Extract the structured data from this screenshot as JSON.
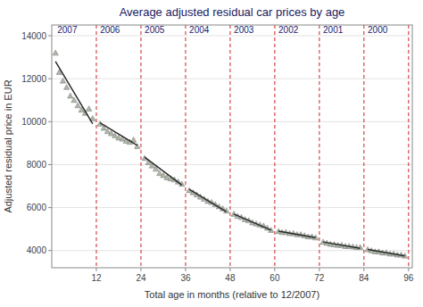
{
  "chart_data": {
    "type": "scatter",
    "title": "Average adjusted residual car prices by age",
    "x_label": "Total age in months (relative to 12/2007)",
    "y_label": "Adjusted residual price in EUR",
    "xlim": [
      0,
      97
    ],
    "ylim": [
      3200,
      14500
    ],
    "xticks": [
      12,
      24,
      36,
      48,
      60,
      72,
      84,
      96
    ],
    "yticks": [
      4000,
      6000,
      8000,
      10000,
      12000,
      14000
    ],
    "grid": true,
    "vlines": {
      "x": [
        12,
        24,
        36,
        48,
        60,
        72,
        84,
        96
      ],
      "color": "#cc2222",
      "line_style": "dashed"
    },
    "annotations": [
      {
        "text": "2007",
        "x": 1.5,
        "y": 14050
      },
      {
        "text": "2006",
        "x": 13,
        "y": 14050
      },
      {
        "text": "2005",
        "x": 25,
        "y": 14050
      },
      {
        "text": "2004",
        "x": 37,
        "y": 14050
      },
      {
        "text": "2003",
        "x": 49,
        "y": 14050
      },
      {
        "text": "2002",
        "x": 61,
        "y": 14050
      },
      {
        "text": "2001",
        "x": 73,
        "y": 14050
      },
      {
        "text": "2000",
        "x": 85,
        "y": 14050
      }
    ],
    "series": [
      {
        "type": "scatter",
        "marker": "triangle",
        "color": "#adb8a8",
        "x": [
          1,
          2,
          3,
          4,
          5,
          6,
          7,
          8,
          9,
          10,
          11
        ],
        "values": [
          13200,
          12300,
          11900,
          11600,
          11200,
          11000,
          10750,
          10550,
          10400,
          10600,
          10150
        ]
      },
      {
        "type": "line",
        "color": "#2a2a2a",
        "x": [
          1,
          11
        ],
        "values": [
          12800,
          9900
        ]
      },
      {
        "type": "scatter",
        "marker": "triangle",
        "color": "#adb8a8",
        "x": [
          13,
          14,
          15,
          16,
          17,
          18,
          19,
          20,
          21,
          22,
          23
        ],
        "values": [
          9900,
          9700,
          9550,
          9450,
          9350,
          9250,
          9200,
          9100,
          9050,
          9150,
          8850
        ]
      },
      {
        "type": "line",
        "color": "#2a2a2a",
        "x": [
          13,
          23
        ],
        "values": [
          9950,
          8900
        ]
      },
      {
        "type": "scatter",
        "marker": "triangle",
        "color": "#adb8a8",
        "x": [
          25,
          26,
          27,
          28,
          29,
          30,
          31,
          32,
          33,
          34,
          35
        ],
        "values": [
          8300,
          8100,
          7950,
          7800,
          7600,
          7500,
          7400,
          7350,
          7300,
          7200,
          7100
        ]
      },
      {
        "type": "line",
        "color": "#2a2a2a",
        "x": [
          25,
          35
        ],
        "values": [
          8350,
          7050
        ]
      },
      {
        "type": "scatter",
        "marker": "triangle",
        "color": "#adb8a8",
        "x": [
          37,
          38,
          39,
          40,
          41,
          42,
          43,
          44,
          45,
          46,
          47
        ],
        "values": [
          6800,
          6700,
          6600,
          6500,
          6400,
          6300,
          6250,
          6150,
          6050,
          5950,
          5850
        ]
      },
      {
        "type": "line",
        "color": "#2a2a2a",
        "x": [
          37,
          47
        ],
        "values": [
          6850,
          5800
        ]
      },
      {
        "type": "scatter",
        "marker": "triangle",
        "color": "#adb8a8",
        "x": [
          49,
          50,
          51,
          52,
          53,
          54,
          55,
          56,
          57,
          58,
          59
        ],
        "values": [
          5700,
          5600,
          5550,
          5450,
          5400,
          5300,
          5250,
          5200,
          5150,
          5050,
          4950
        ]
      },
      {
        "type": "line",
        "color": "#2a2a2a",
        "x": [
          49,
          59
        ],
        "values": [
          5700,
          4950
        ]
      },
      {
        "type": "scatter",
        "marker": "triangle",
        "color": "#adb8a8",
        "x": [
          61,
          62,
          63,
          64,
          65,
          66,
          67,
          68,
          69,
          70,
          71
        ],
        "values": [
          4900,
          4850,
          4850,
          4800,
          4800,
          4750,
          4750,
          4700,
          4650,
          4650,
          4600
        ]
      },
      {
        "type": "line",
        "color": "#2a2a2a",
        "x": [
          61,
          71
        ],
        "values": [
          4900,
          4600
        ]
      },
      {
        "type": "scatter",
        "marker": "triangle",
        "color": "#adb8a8",
        "x": [
          73,
          74,
          75,
          76,
          77,
          78,
          79,
          80,
          81,
          82,
          83
        ],
        "values": [
          4400,
          4350,
          4300,
          4280,
          4250,
          4250,
          4200,
          4200,
          4180,
          4150,
          4150
        ]
      },
      {
        "type": "line",
        "color": "#2a2a2a",
        "x": [
          73,
          83
        ],
        "values": [
          4400,
          4100
        ]
      },
      {
        "type": "scatter",
        "marker": "triangle",
        "color": "#adb8a8",
        "x": [
          85,
          86,
          87,
          88,
          89,
          90,
          91,
          92,
          93,
          94,
          95
        ],
        "values": [
          4050,
          4000,
          3950,
          3950,
          3900,
          3900,
          3850,
          3850,
          3800,
          3800,
          3750
        ]
      },
      {
        "type": "line",
        "color": "#2a2a2a",
        "x": [
          85,
          95
        ],
        "values": [
          4050,
          3750
        ]
      }
    ]
  }
}
